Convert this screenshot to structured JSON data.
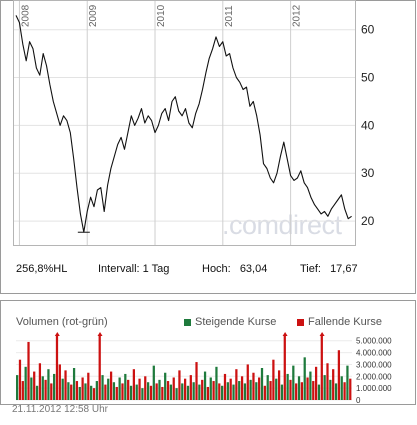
{
  "chart_data": [
    {
      "type": "line",
      "years": [
        "2008",
        "2009",
        "2010",
        "2011",
        "2012"
      ],
      "y_ticks": [
        20,
        30,
        40,
        50,
        60
      ],
      "ylim": [
        15,
        66
      ],
      "grid": true,
      "watermark": ".comdirect",
      "series": [
        {
          "x": [
            2007.95,
            2008.0,
            2008.05,
            2008.1,
            2008.15,
            2008.2,
            2008.25,
            2008.3,
            2008.35,
            2008.4,
            2008.45,
            2008.5,
            2008.55,
            2008.6,
            2008.65,
            2008.7,
            2008.75,
            2008.8,
            2008.85,
            2008.9,
            2008.95,
            2009.0,
            2009.05,
            2009.1,
            2009.15,
            2009.2,
            2009.25,
            2009.3,
            2009.35,
            2009.4,
            2009.45,
            2009.5,
            2009.55,
            2009.6,
            2009.65,
            2009.7,
            2009.75,
            2009.8,
            2009.85,
            2009.9,
            2009.95,
            2010.0,
            2010.05,
            2010.1,
            2010.15,
            2010.2,
            2010.25,
            2010.3,
            2010.35,
            2010.4,
            2010.45,
            2010.5,
            2010.55,
            2010.6,
            2010.65,
            2010.7,
            2010.75,
            2010.8,
            2010.85,
            2010.9,
            2010.95,
            2011.0,
            2011.05,
            2011.1,
            2011.15,
            2011.2,
            2011.25,
            2011.3,
            2011.35,
            2011.4,
            2011.45,
            2011.5,
            2011.55,
            2011.6,
            2011.65,
            2011.7,
            2011.75,
            2011.8,
            2011.85,
            2011.9,
            2011.95,
            2012.0,
            2012.05,
            2012.1,
            2012.15,
            2012.2,
            2012.25,
            2012.3,
            2012.35,
            2012.4,
            2012.45,
            2012.5,
            2012.55,
            2012.6,
            2012.65,
            2012.7,
            2012.75,
            2012.8,
            2012.85,
            2012.9
          ],
          "y": [
            63.0,
            61.5,
            57.0,
            53.5,
            57.5,
            56.0,
            52.0,
            50.5,
            55.0,
            52.5,
            48.5,
            45.0,
            42.5,
            40.0,
            42.0,
            41.0,
            38.5,
            33.0,
            27.0,
            21.5,
            17.7,
            22.0,
            25.0,
            23.0,
            26.5,
            27.0,
            22.0,
            27.5,
            31.0,
            33.5,
            36.0,
            37.5,
            35.0,
            38.5,
            42.0,
            40.0,
            41.5,
            43.5,
            40.5,
            42.0,
            41.0,
            38.5,
            40.0,
            42.5,
            43.5,
            41.0,
            45.0,
            46.0,
            43.0,
            42.0,
            43.5,
            40.5,
            39.5,
            42.5,
            44.5,
            47.5,
            51.0,
            54.0,
            56.0,
            58.5,
            56.5,
            57.5,
            54.5,
            55.0,
            52.0,
            50.0,
            49.0,
            47.5,
            48.0,
            44.0,
            45.0,
            42.0,
            38.0,
            32.0,
            31.0,
            29.0,
            28.0,
            30.0,
            33.5,
            36.5,
            33.0,
            29.5,
            28.5,
            29.0,
            30.5,
            28.0,
            27.0,
            25.0,
            23.5,
            22.5,
            21.5,
            22.0,
            21.0,
            22.5,
            23.5,
            24.5,
            25.5,
            22.5,
            20.5,
            21.0
          ]
        }
      ],
      "stats": [
        {
          "label": "256,8%HL"
        },
        {
          "label": "Intervall:",
          "value": "1 Tag"
        },
        {
          "label": "Hoch:",
          "value": "63,04"
        },
        {
          "label": "Tief:",
          "value": "17,67"
        }
      ],
      "high": 63.04,
      "low": 17.67
    },
    {
      "type": "bar",
      "title": "Volumen (rot-grün)",
      "y_ticks": [
        "0",
        "1.000.000",
        "2.000.000",
        "3.000.000",
        "4.000.000",
        "5.000.000"
      ],
      "ylim": [
        0,
        5400000
      ],
      "legend": [
        {
          "name": "Steigende Kurse",
          "color": "#1e7a3c"
        },
        {
          "name": "Fallende Kurse",
          "color": "#cc1111"
        }
      ],
      "bars": [
        {
          "v": 2.1,
          "d": "up"
        },
        {
          "v": 3.4,
          "d": "down"
        },
        {
          "v": 1.6,
          "d": "down"
        },
        {
          "v": 2.8,
          "d": "up"
        },
        {
          "v": 4.9,
          "d": "down"
        },
        {
          "v": 1.9,
          "d": "up"
        },
        {
          "v": 2.4,
          "d": "down"
        },
        {
          "v": 1.2,
          "d": "up"
        },
        {
          "v": 3.1,
          "d": "down"
        },
        {
          "v": 2.0,
          "d": "up"
        },
        {
          "v": 1.7,
          "d": "down"
        },
        {
          "v": 2.6,
          "d": "up"
        },
        {
          "v": 1.4,
          "d": "down"
        },
        {
          "v": 2.2,
          "d": "up"
        },
        {
          "v": 5.4,
          "d": "down"
        },
        {
          "v": 3.0,
          "d": "down"
        },
        {
          "v": 1.8,
          "d": "up"
        },
        {
          "v": 2.5,
          "d": "down"
        },
        {
          "v": 1.5,
          "d": "up"
        },
        {
          "v": 1.3,
          "d": "down"
        },
        {
          "v": 2.7,
          "d": "up"
        },
        {
          "v": 1.6,
          "d": "down"
        },
        {
          "v": 1.1,
          "d": "up"
        },
        {
          "v": 1.9,
          "d": "down"
        },
        {
          "v": 1.4,
          "d": "up"
        },
        {
          "v": 2.3,
          "d": "down"
        },
        {
          "v": 1.2,
          "d": "up"
        },
        {
          "v": 1.0,
          "d": "down"
        },
        {
          "v": 1.6,
          "d": "up"
        },
        {
          "v": 5.4,
          "d": "down"
        },
        {
          "v": 2.1,
          "d": "up"
        },
        {
          "v": 1.3,
          "d": "down"
        },
        {
          "v": 1.8,
          "d": "up"
        },
        {
          "v": 2.4,
          "d": "down"
        },
        {
          "v": 1.5,
          "d": "up"
        },
        {
          "v": 1.1,
          "d": "down"
        },
        {
          "v": 1.9,
          "d": "up"
        },
        {
          "v": 1.4,
          "d": "down"
        },
        {
          "v": 2.2,
          "d": "up"
        },
        {
          "v": 1.7,
          "d": "down"
        },
        {
          "v": 1.2,
          "d": "up"
        },
        {
          "v": 2.6,
          "d": "down"
        },
        {
          "v": 1.3,
          "d": "up"
        },
        {
          "v": 1.8,
          "d": "down"
        },
        {
          "v": 1.0,
          "d": "up"
        },
        {
          "v": 2.0,
          "d": "down"
        },
        {
          "v": 1.5,
          "d": "up"
        },
        {
          "v": 1.2,
          "d": "down"
        },
        {
          "v": 2.9,
          "d": "up"
        },
        {
          "v": 1.4,
          "d": "down"
        },
        {
          "v": 1.7,
          "d": "up"
        },
        {
          "v": 1.1,
          "d": "down"
        },
        {
          "v": 2.3,
          "d": "up"
        },
        {
          "v": 1.6,
          "d": "down"
        },
        {
          "v": 1.3,
          "d": "up"
        },
        {
          "v": 1.9,
          "d": "down"
        },
        {
          "v": 1.0,
          "d": "up"
        },
        {
          "v": 2.5,
          "d": "down"
        },
        {
          "v": 1.4,
          "d": "up"
        },
        {
          "v": 1.8,
          "d": "down"
        },
        {
          "v": 1.2,
          "d": "up"
        },
        {
          "v": 2.1,
          "d": "down"
        },
        {
          "v": 1.5,
          "d": "up"
        },
        {
          "v": 3.2,
          "d": "down"
        },
        {
          "v": 1.3,
          "d": "up"
        },
        {
          "v": 1.7,
          "d": "down"
        },
        {
          "v": 2.4,
          "d": "up"
        },
        {
          "v": 1.1,
          "d": "down"
        },
        {
          "v": 1.9,
          "d": "up"
        },
        {
          "v": 1.6,
          "d": "down"
        },
        {
          "v": 2.8,
          "d": "up"
        },
        {
          "v": 1.4,
          "d": "down"
        },
        {
          "v": 1.2,
          "d": "up"
        },
        {
          "v": 2.2,
          "d": "down"
        },
        {
          "v": 1.5,
          "d": "up"
        },
        {
          "v": 1.8,
          "d": "down"
        },
        {
          "v": 1.3,
          "d": "up"
        },
        {
          "v": 2.6,
          "d": "down"
        },
        {
          "v": 1.6,
          "d": "up"
        },
        {
          "v": 2.0,
          "d": "down"
        },
        {
          "v": 1.4,
          "d": "up"
        },
        {
          "v": 3.0,
          "d": "down"
        },
        {
          "v": 1.7,
          "d": "up"
        },
        {
          "v": 2.3,
          "d": "down"
        },
        {
          "v": 1.5,
          "d": "up"
        },
        {
          "v": 1.9,
          "d": "down"
        },
        {
          "v": 2.7,
          "d": "up"
        },
        {
          "v": 1.2,
          "d": "down"
        },
        {
          "v": 2.1,
          "d": "up"
        },
        {
          "v": 1.6,
          "d": "down"
        },
        {
          "v": 3.4,
          "d": "down"
        },
        {
          "v": 1.8,
          "d": "up"
        },
        {
          "v": 2.5,
          "d": "down"
        },
        {
          "v": 1.3,
          "d": "up"
        },
        {
          "v": 5.4,
          "d": "down"
        },
        {
          "v": 2.2,
          "d": "up"
        },
        {
          "v": 1.7,
          "d": "down"
        },
        {
          "v": 2.9,
          "d": "up"
        },
        {
          "v": 1.4,
          "d": "down"
        },
        {
          "v": 2.0,
          "d": "up"
        },
        {
          "v": 1.5,
          "d": "down"
        },
        {
          "v": 3.6,
          "d": "up"
        },
        {
          "v": 1.9,
          "d": "down"
        },
        {
          "v": 2.4,
          "d": "up"
        },
        {
          "v": 1.6,
          "d": "down"
        },
        {
          "v": 2.8,
          "d": "down"
        },
        {
          "v": 1.3,
          "d": "up"
        },
        {
          "v": 5.4,
          "d": "down"
        },
        {
          "v": 2.1,
          "d": "up"
        },
        {
          "v": 3.1,
          "d": "down"
        },
        {
          "v": 1.7,
          "d": "up"
        },
        {
          "v": 2.6,
          "d": "down"
        },
        {
          "v": 1.4,
          "d": "up"
        },
        {
          "v": 4.2,
          "d": "down"
        },
        {
          "v": 2.0,
          "d": "up"
        },
        {
          "v": 1.5,
          "d": "down"
        },
        {
          "v": 2.9,
          "d": "up"
        },
        {
          "v": 1.8,
          "d": "down"
        }
      ]
    }
  ],
  "timestamp": "21.11.2012 12:58 Uhr"
}
